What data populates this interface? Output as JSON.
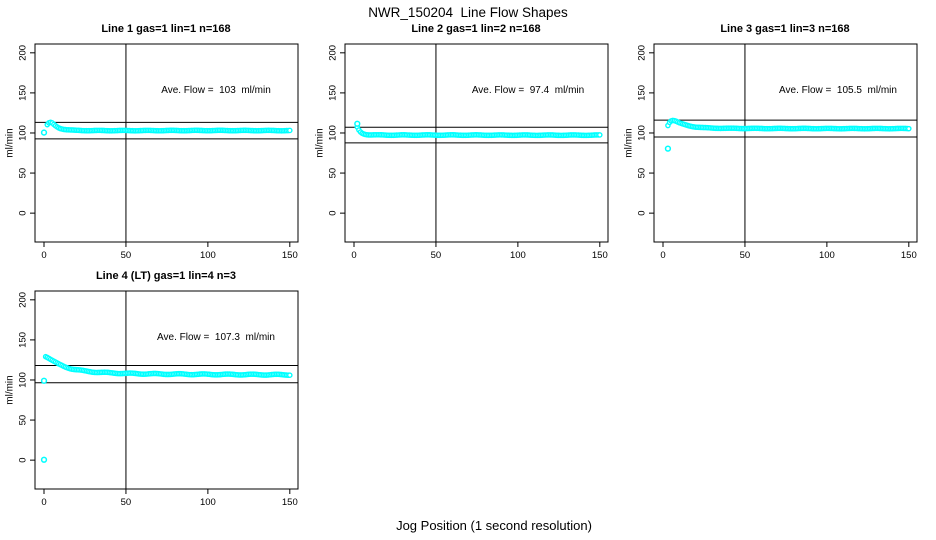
{
  "page": {
    "main_title": "NWR_150204  Line Flow Shapes",
    "global_xlabel": "Jog Position (1 second resolution)"
  },
  "colors": {
    "data_point": "#00ffff",
    "axis": "#000000",
    "background": "#ffffff",
    "text": "#000000"
  },
  "chart_data": [
    {
      "type": "scatter",
      "title": "Line 1 gas=1 lin=1 n=168",
      "annotation": "Ave. Flow =  103  ml/min",
      "ave_flow_ml_min": 103,
      "n": 168,
      "ylabel": "ml/min",
      "xticks": [
        0,
        50,
        100,
        150
      ],
      "yticks": [
        0,
        50,
        100,
        150,
        200
      ],
      "xlim": [
        -5.5,
        155
      ],
      "ylim": [
        -36,
        211
      ],
      "vline_x": 50,
      "hlines": [
        113.3,
        92.7
      ],
      "x_resolution_s": 1,
      "x_start": 2,
      "x_end": 150,
      "noise_amp": 0.25,
      "keypoints": [
        [
          2,
          110.2
        ],
        [
          3,
          112.4
        ],
        [
          4,
          113.1
        ],
        [
          5,
          112.3
        ],
        [
          6,
          110.6
        ],
        [
          7,
          109.0
        ],
        [
          8,
          107.6
        ],
        [
          9,
          106.5
        ],
        [
          10,
          105.7
        ],
        [
          12,
          104.7
        ],
        [
          14,
          104.1
        ],
        [
          16,
          103.7
        ],
        [
          18,
          103.4
        ],
        [
          20,
          103.2
        ],
        [
          25,
          103.1
        ],
        [
          30,
          103.0
        ],
        [
          60,
          103.0
        ],
        [
          100,
          103.1
        ],
        [
          150,
          103.0
        ]
      ],
      "outlier_points": [
        [
          0,
          100.5
        ]
      ]
    },
    {
      "type": "scatter",
      "title": "Line 2 gas=1 lin=2 n=168",
      "annotation": "Ave. Flow =  97.4  ml/min",
      "ave_flow_ml_min": 97.4,
      "n": 168,
      "ylabel": "ml/min",
      "xticks": [
        0,
        50,
        100,
        150
      ],
      "yticks": [
        0,
        50,
        100,
        150,
        200
      ],
      "xlim": [
        -5.5,
        155
      ],
      "ylim": [
        -36,
        211
      ],
      "vline_x": 50,
      "hlines": [
        107.1,
        87.7
      ],
      "x_resolution_s": 1,
      "x_start": 2,
      "x_end": 150,
      "noise_amp": 0.3,
      "keypoints": [
        [
          2,
          107.2
        ],
        [
          3,
          103.6
        ],
        [
          4,
          101.2
        ],
        [
          5,
          99.7
        ],
        [
          6,
          98.9
        ],
        [
          7,
          98.4
        ],
        [
          8,
          98.0
        ],
        [
          10,
          97.7
        ],
        [
          12,
          97.6
        ],
        [
          15,
          97.5
        ],
        [
          20,
          97.4
        ],
        [
          60,
          97.4
        ],
        [
          100,
          97.3
        ],
        [
          150,
          97.3
        ]
      ],
      "outlier_points": [
        [
          2,
          111.5
        ]
      ]
    },
    {
      "type": "scatter",
      "title": "Line 3 gas=1 lin=3 n=168",
      "annotation": "Ave. Flow =  105.5  ml/min",
      "ave_flow_ml_min": 105.5,
      "n": 168,
      "ylabel": "ml/min",
      "xticks": [
        0,
        50,
        100,
        150
      ],
      "yticks": [
        0,
        50,
        100,
        150,
        200
      ],
      "xlim": [
        -5.5,
        155
      ],
      "ylim": [
        -36,
        211
      ],
      "vline_x": 50,
      "hlines": [
        116.1,
        95.0
      ],
      "x_resolution_s": 1,
      "x_start": 3,
      "x_end": 150,
      "noise_amp": 0.25,
      "keypoints": [
        [
          3,
          109.5
        ],
        [
          4,
          113.4
        ],
        [
          5,
          115.3
        ],
        [
          6,
          115.9
        ],
        [
          7,
          115.5
        ],
        [
          8,
          114.7
        ],
        [
          9,
          113.6
        ],
        [
          10,
          112.6
        ],
        [
          12,
          111.1
        ],
        [
          14,
          109.9
        ],
        [
          16,
          108.9
        ],
        [
          18,
          108.1
        ],
        [
          20,
          107.5
        ],
        [
          25,
          106.6
        ],
        [
          30,
          106.1
        ],
        [
          40,
          105.8
        ],
        [
          60,
          105.6
        ],
        [
          100,
          105.5
        ],
        [
          150,
          105.5
        ]
      ],
      "outlier_points": [
        [
          3,
          80.5
        ]
      ]
    },
    {
      "type": "scatter",
      "title": "Line 4 (LT) gas=1 lin=4 n=3",
      "annotation": "Ave. Flow =  107.3  ml/min",
      "ave_flow_ml_min": 107.3,
      "n": 3,
      "ylabel": "ml/min",
      "xticks": [
        0,
        50,
        100,
        150
      ],
      "yticks": [
        0,
        50,
        100,
        150,
        200
      ],
      "xlim": [
        -5.5,
        155
      ],
      "ylim": [
        -36,
        211
      ],
      "vline_x": 50,
      "hlines": [
        118.0,
        96.6
      ],
      "x_resolution_s": 1,
      "x_start": 1,
      "x_end": 150,
      "noise_amp": 0.55,
      "keypoints": [
        [
          1,
          129.6
        ],
        [
          2,
          128.6
        ],
        [
          3,
          127.3
        ],
        [
          4,
          125.9
        ],
        [
          5,
          124.5
        ],
        [
          6,
          123.2
        ],
        [
          7,
          121.9
        ],
        [
          8,
          120.7
        ],
        [
          9,
          119.6
        ],
        [
          10,
          118.7
        ],
        [
          12,
          117.0
        ],
        [
          14,
          115.7
        ],
        [
          16,
          114.5
        ],
        [
          18,
          113.5
        ],
        [
          20,
          112.7
        ],
        [
          25,
          111.1
        ],
        [
          30,
          110.1
        ],
        [
          35,
          109.4
        ],
        [
          40,
          108.9
        ],
        [
          50,
          108.2
        ],
        [
          60,
          107.8
        ],
        [
          70,
          107.5
        ],
        [
          80,
          107.3
        ],
        [
          100,
          107.0
        ],
        [
          120,
          106.8
        ],
        [
          150,
          106.5
        ]
      ],
      "outlier_points": [
        [
          0,
          99.0
        ],
        [
          0,
          0.5
        ]
      ]
    }
  ]
}
